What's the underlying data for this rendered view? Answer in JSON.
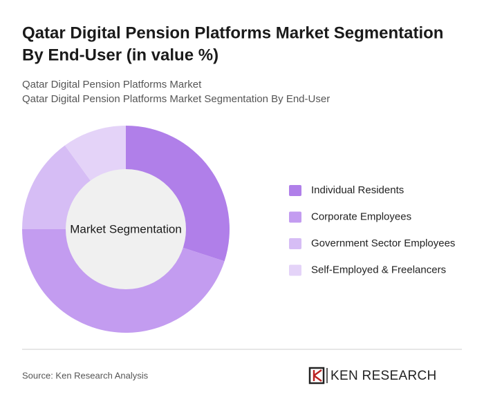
{
  "chart_data": {
    "type": "donut",
    "title": [
      "Qatar Digital Pension Platforms Market Segmentation",
      "By End-User (in value %)"
    ],
    "subtitle": [
      "Qatar Digital Pension Platforms Market",
      "Qatar Digital Pension Platforms Market Segmentation By End-User"
    ],
    "center_label": "Market Segmentation",
    "categories": [
      "Individual Residents",
      "Corporate Employees",
      "Government Sector Employees",
      "Self-Employed & Freelancers"
    ],
    "values": [
      30,
      45,
      15,
      10
    ],
    "colors": [
      "#b07fe9",
      "#c39cf0",
      "#d6bdf5",
      "#e4d3f8"
    ],
    "source": "Source: Ken Research Analysis",
    "brand": "KEN RESEARCH"
  }
}
